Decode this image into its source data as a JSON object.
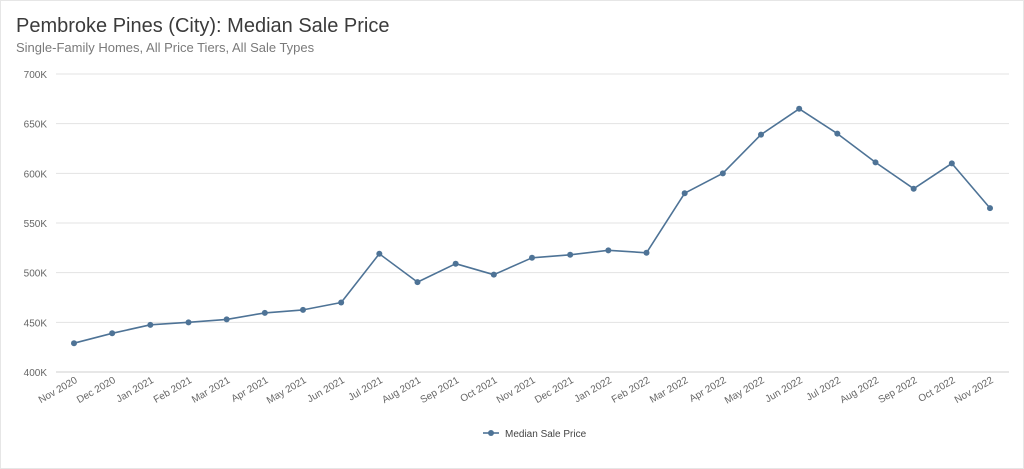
{
  "chart_data": {
    "type": "line",
    "title": "Pembroke Pines (City): Median Sale Price",
    "subtitle": "Single-Family Homes, All Price Tiers, All Sale Types",
    "xlabel": "",
    "ylabel": "",
    "ylim": [
      400000,
      700000
    ],
    "yticks": [
      400000,
      450000,
      500000,
      550000,
      600000,
      650000,
      700000
    ],
    "ytick_labels": [
      "400K",
      "450K",
      "500K",
      "550K",
      "600K",
      "650K",
      "700K"
    ],
    "grid": true,
    "legend_position": "bottom-center",
    "categories": [
      "Nov 2020",
      "Dec 2020",
      "Jan 2021",
      "Feb 2021",
      "Mar 2021",
      "Apr 2021",
      "May 2021",
      "Jun 2021",
      "Jul 2021",
      "Aug 2021",
      "Sep 2021",
      "Oct 2021",
      "Nov 2021",
      "Dec 2021",
      "Jan 2022",
      "Feb 2022",
      "Mar 2022",
      "Apr 2022",
      "May 2022",
      "Jun 2022",
      "Jul 2022",
      "Aug 2022",
      "Sep 2022",
      "Oct 2022",
      "Nov 2022"
    ],
    "series": [
      {
        "name": "Median Sale Price",
        "color": "#4e7396",
        "values": [
          429000,
          439000,
          447500,
          450000,
          453000,
          459500,
          462500,
          470000,
          519000,
          490500,
          509000,
          498000,
          515000,
          518000,
          522500,
          520000,
          580000,
          600000,
          639000,
          665000,
          640000,
          611000,
          584500,
          610000,
          565000
        ]
      }
    ]
  }
}
